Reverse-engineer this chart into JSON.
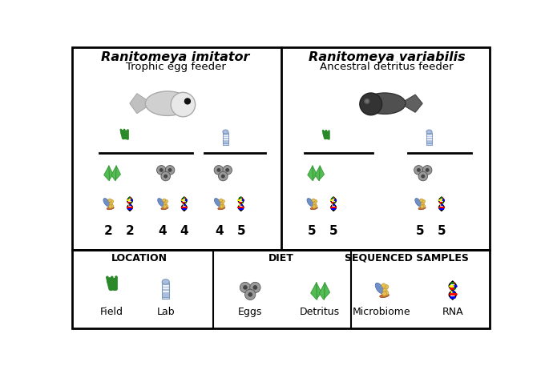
{
  "title_left_line1": "Ranitomeya imitator",
  "title_left_line2": "Trophic egg feeder",
  "title_right_line1": "Ranitomeya variabilis",
  "title_right_line2": "Ancestral detritus feeder",
  "left_field_numbers": [
    "2",
    "2",
    "4",
    "4"
  ],
  "left_lab_numbers": [
    "4",
    "5"
  ],
  "right_field_numbers": [
    "5",
    "5"
  ],
  "right_lab_numbers": [
    "5",
    "5"
  ],
  "legend_location_label": "LOCATION",
  "legend_diet_label": "DIET",
  "legend_seq_label": "SEQUENCED SAMPLES",
  "legend_items": [
    "Field",
    "Lab",
    "Eggs",
    "Detritus",
    "Microbiome",
    "RNA"
  ],
  "bg_color": "#ffffff",
  "box_color": "#000000",
  "tadpole_light_body": "#d0d0d0",
  "tadpole_light_head": "#e8e8e8",
  "tadpole_dark_body": "#505050",
  "tadpole_dark_head": "#333333",
  "grass_color": "#2a8a2a",
  "tube_color": "#aabfdd",
  "egg_color": "#9a9a9a",
  "leaf_color_light": "#55bb55",
  "leaf_color_dark": "#339933",
  "dna_colors": [
    "red",
    "blue",
    "green",
    "yellow",
    "red",
    "blue"
  ],
  "microbiome_blue": "#7090c8",
  "microbiome_orange": "#c87030",
  "microbiome_yellow": "#e8c050"
}
